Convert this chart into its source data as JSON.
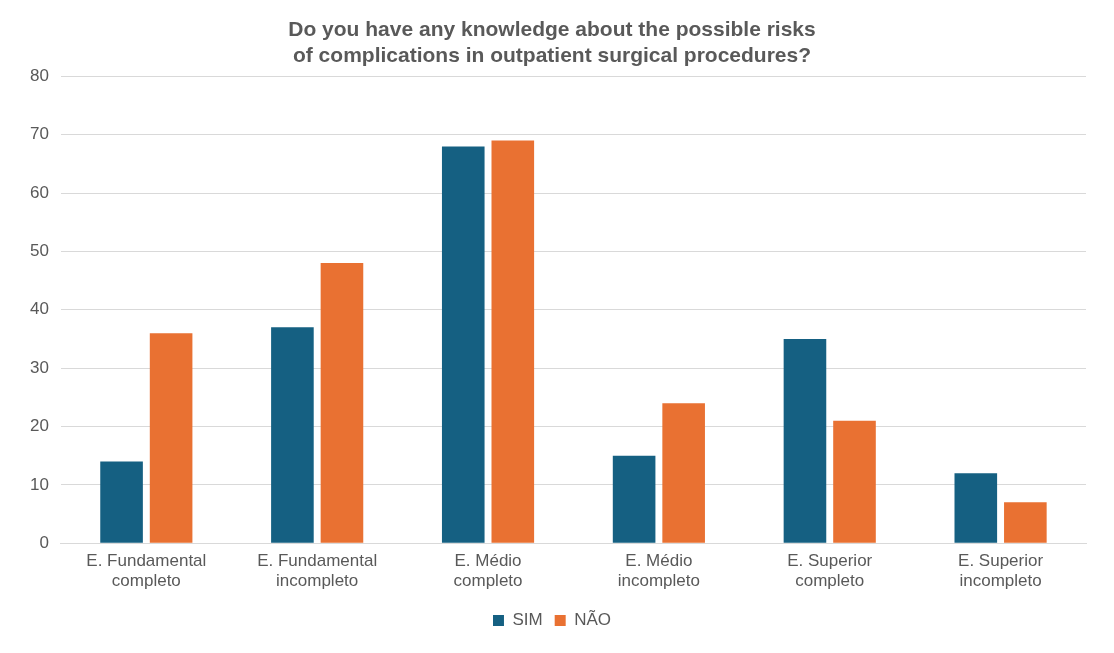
{
  "chart_data": {
    "type": "bar",
    "title": "Do you have any knowledge about the possible risks of complications in outpatient surgical procedures?",
    "categories": [
      "E. Fundamental completo",
      "E. Fundamental incompleto",
      "E. Médio completo",
      "E. Médio incompleto",
      "E. Superior completo",
      "E. Superior incompleto"
    ],
    "series": [
      {
        "name": "SIM",
        "color": "#156082",
        "values": [
          14,
          37,
          68,
          15,
          35,
          12
        ]
      },
      {
        "name": "NÃO",
        "color": "#e97132",
        "values": [
          36,
          48,
          69,
          24,
          21,
          7
        ]
      }
    ],
    "ylim": [
      0,
      80
    ],
    "yticks": [
      0,
      10,
      20,
      30,
      40,
      50,
      60,
      70,
      80
    ],
    "grid": "y",
    "legend": "bottom"
  }
}
